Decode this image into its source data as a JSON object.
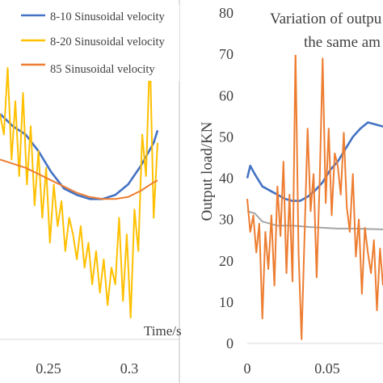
{
  "chart_data": [
    {
      "type": "line",
      "title": "",
      "xlabel": "Time/s",
      "ylabel": "",
      "x_ticks": [
        "0.25",
        "0.3"
      ],
      "xlim": [
        0.195,
        0.33
      ],
      "ylim": [
        0,
        80
      ],
      "grid": false,
      "legend_position": "top-right",
      "series": [
        {
          "name": "8-10 Sinusoidal velocity",
          "color": "#4472C4",
          "x": [
            0.195,
            0.205,
            0.215,
            0.225,
            0.235,
            0.245,
            0.255,
            0.265,
            0.275,
            0.285,
            0.295,
            0.305,
            0.315,
            0.318
          ],
          "y": [
            55,
            52,
            50,
            46,
            41,
            37,
            35.5,
            34.5,
            34.5,
            35.5,
            38,
            42.5,
            48,
            51
          ]
        },
        {
          "name": "8-20 Sinusoidal velocity",
          "color": "#FFC000",
          "x": [
            0.195,
            0.198,
            0.201,
            0.204,
            0.207,
            0.21,
            0.213,
            0.216,
            0.219,
            0.222,
            0.225,
            0.228,
            0.231,
            0.234,
            0.237,
            0.24,
            0.243,
            0.246,
            0.249,
            0.252,
            0.255,
            0.258,
            0.261,
            0.264,
            0.267,
            0.27,
            0.273,
            0.276,
            0.279,
            0.282,
            0.285,
            0.288,
            0.291,
            0.294,
            0.297,
            0.3,
            0.303,
            0.306,
            0.309,
            0.312,
            0.315,
            0.318
          ],
          "y": [
            55,
            50,
            66,
            44,
            58,
            40,
            60,
            38,
            52,
            33,
            46,
            30,
            42,
            24,
            38,
            28,
            34,
            22,
            30,
            26,
            20,
            28,
            18,
            24,
            14,
            22,
            12,
            20,
            9,
            18,
            14,
            30,
            10,
            26,
            6,
            32,
            22,
            50,
            40,
            70,
            30,
            48
          ]
        },
        {
          "name": "85 Sinusoidal velocity",
          "color": "#ED7D31",
          "x": [
            0.195,
            0.205,
            0.215,
            0.225,
            0.235,
            0.245,
            0.255,
            0.265,
            0.275,
            0.285,
            0.295,
            0.305,
            0.315,
            0.318
          ],
          "y": [
            44,
            43,
            42,
            40.5,
            39,
            37.5,
            36,
            35,
            34.5,
            34.5,
            35,
            36.5,
            38.5,
            39
          ]
        }
      ]
    },
    {
      "type": "line",
      "title": "Variation of outpu the same am",
      "title_lines": [
        "Variation of outpu",
        "the same am"
      ],
      "xlabel": "",
      "ylabel": "Output load/KN",
      "x_ticks": [
        "0",
        "0.05"
      ],
      "y_ticks": [
        "0",
        "10",
        "20",
        "30",
        "40",
        "50",
        "60",
        "70",
        "80"
      ],
      "xlim": [
        0,
        0.09
      ],
      "ylim": [
        0,
        80
      ],
      "grid": false,
      "series": [
        {
          "color": "#4472C4",
          "x": [
            0,
            0.002,
            0.005,
            0.01,
            0.015,
            0.02,
            0.025,
            0.03,
            0.035,
            0.04,
            0.045,
            0.05,
            0.055,
            0.06,
            0.065,
            0.07,
            0.075,
            0.08,
            0.085,
            0.09
          ],
          "y": [
            40,
            43,
            41,
            38,
            37,
            36,
            35,
            34.5,
            34.5,
            35.5,
            37,
            39,
            42,
            44,
            47,
            50,
            52,
            53.5,
            53,
            52.5
          ]
        },
        {
          "color": "#A5A5A5",
          "x": [
            0,
            0.005,
            0.01,
            0.015,
            0.02,
            0.03,
            0.04,
            0.05,
            0.06,
            0.07,
            0.08,
            0.09
          ],
          "y": [
            32,
            31.5,
            29.5,
            29,
            28.5,
            28.5,
            28.2,
            28,
            27.8,
            27.8,
            27.7,
            27.6
          ]
        },
        {
          "color": "#ED7D31",
          "x": [
            0,
            0.002,
            0.004,
            0.006,
            0.008,
            0.01,
            0.012,
            0.014,
            0.016,
            0.018,
            0.02,
            0.022,
            0.024,
            0.026,
            0.028,
            0.03,
            0.032,
            0.034,
            0.036,
            0.038,
            0.04,
            0.042,
            0.044,
            0.046,
            0.048,
            0.05,
            0.052,
            0.054,
            0.056,
            0.058,
            0.06,
            0.062,
            0.064,
            0.066,
            0.068,
            0.07,
            0.072,
            0.074,
            0.076,
            0.078,
            0.08,
            0.082,
            0.084,
            0.086,
            0.088,
            0.09
          ],
          "y": [
            35,
            27,
            31,
            22,
            29,
            6,
            27,
            18,
            31,
            14,
            38,
            26,
            44,
            17,
            36,
            15,
            71,
            22,
            1,
            26,
            52,
            32,
            41,
            16,
            39,
            69,
            34,
            52,
            31,
            46,
            43,
            36,
            51,
            33,
            27,
            41,
            21,
            30,
            12,
            28,
            22,
            17,
            25,
            8,
            23,
            14
          ]
        }
      ]
    }
  ]
}
